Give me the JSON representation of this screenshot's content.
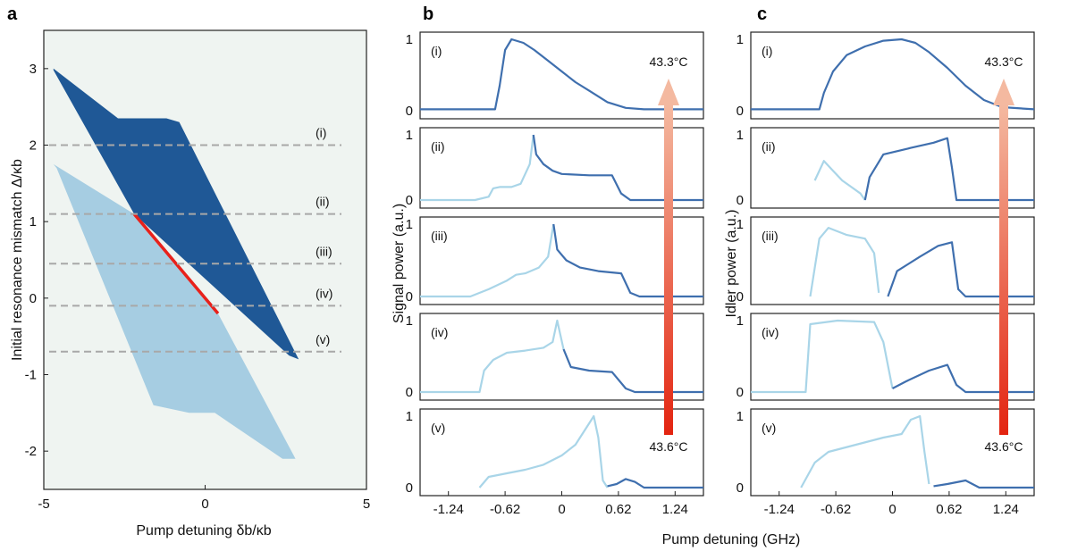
{
  "panels": {
    "a": "a",
    "b": "b",
    "c": "c"
  },
  "chart_data": [
    {
      "id": "a",
      "type": "area",
      "xlabel": "Pump detuning δb/κb",
      "ylabel": "Initial resonance mismatch Δ/κb",
      "xlim": [
        -5,
        5
      ],
      "ylim": [
        -2.5,
        3.5
      ],
      "xticks": [
        "-5",
        "0",
        "5"
      ],
      "yticks": [
        "-2",
        "-1",
        "0",
        "1",
        "2",
        "3"
      ],
      "colors": {
        "background": "#eff4f1",
        "upper": "#1f5896",
        "lower": "#a6cde2",
        "overlap": "#e8211b",
        "guides": "#a8a8a8"
      },
      "series": [
        {
          "polygon": [
            [
              -4.7,
              3.0
            ],
            [
              -2.7,
              2.35
            ],
            [
              -1.2,
              2.35
            ],
            [
              -0.8,
              2.3
            ],
            [
              2.9,
              -0.8
            ],
            [
              2.6,
              -0.75
            ],
            [
              -2.2,
              1.1
            ],
            [
              -4.7,
              2.98
            ]
          ]
        },
        {
          "polygon": [
            [
              -4.7,
              1.75
            ],
            [
              -2.2,
              1.1
            ],
            [
              0.4,
              -0.2
            ],
            [
              2.8,
              -2.1
            ],
            [
              2.4,
              -2.1
            ],
            [
              0.3,
              -1.5
            ],
            [
              -0.5,
              -1.5
            ],
            [
              -1.6,
              -1.4
            ],
            [
              -4.6,
              1.7
            ]
          ]
        },
        {
          "line": [
            [
              -2.2,
              1.1
            ],
            [
              0.4,
              -0.2
            ]
          ]
        }
      ],
      "guides": [
        {
          "y": 2.0,
          "label": "(i)"
        },
        {
          "y": 1.1,
          "label": "(ii)"
        },
        {
          "y": 0.45,
          "label": "(iii)"
        },
        {
          "y": -0.1,
          "label": "(iv)"
        },
        {
          "y": -0.7,
          "label": "(v)"
        }
      ]
    },
    {
      "id": "b",
      "type": "line",
      "ylabel": "Signal power (a.u.)",
      "xlabel": "Pump detuning (GHz)",
      "xlim": [
        -1.55,
        1.55
      ],
      "xticks": [
        "-1.24",
        "-0.62",
        "0",
        "0.62",
        "1.24"
      ],
      "yticks": [
        "0",
        "1"
      ],
      "colors": {
        "dark": "#3f6fae",
        "light": "#a9d5e8"
      },
      "arrow": {
        "top": "43.3°C",
        "bottom": "43.6°C"
      },
      "subplots": [
        {
          "label": "(i)",
          "light": [],
          "dark": [
            [
              -1.55,
              0.02
            ],
            [
              -0.73,
              0.02
            ],
            [
              -0.68,
              0.35
            ],
            [
              -0.62,
              0.85
            ],
            [
              -0.55,
              1.0
            ],
            [
              -0.42,
              0.95
            ],
            [
              -0.3,
              0.85
            ],
            [
              -0.15,
              0.7
            ],
            [
              0.0,
              0.55
            ],
            [
              0.15,
              0.4
            ],
            [
              0.3,
              0.28
            ],
            [
              0.5,
              0.12
            ],
            [
              0.7,
              0.04
            ],
            [
              0.9,
              0.02
            ],
            [
              1.55,
              0.02
            ]
          ]
        },
        {
          "label": "(ii)",
          "light": [
            [
              -1.55,
              0.0
            ],
            [
              -0.95,
              0.0
            ],
            [
              -0.8,
              0.05
            ],
            [
              -0.75,
              0.18
            ],
            [
              -0.68,
              0.2
            ],
            [
              -0.55,
              0.2
            ],
            [
              -0.45,
              0.25
            ],
            [
              -0.35,
              0.55
            ],
            [
              -0.31,
              1.0
            ]
          ],
          "dark": [
            [
              -0.31,
              1.0
            ],
            [
              -0.28,
              0.7
            ],
            [
              -0.2,
              0.55
            ],
            [
              -0.1,
              0.45
            ],
            [
              0.0,
              0.4
            ],
            [
              0.3,
              0.38
            ],
            [
              0.55,
              0.38
            ],
            [
              0.65,
              0.1
            ],
            [
              0.75,
              0.0
            ],
            [
              1.55,
              0.0
            ]
          ]
        },
        {
          "label": "(iii)",
          "light": [
            [
              -1.55,
              0.0
            ],
            [
              -1.0,
              0.0
            ],
            [
              -0.8,
              0.1
            ],
            [
              -0.6,
              0.22
            ],
            [
              -0.5,
              0.3
            ],
            [
              -0.4,
              0.32
            ],
            [
              -0.25,
              0.4
            ],
            [
              -0.15,
              0.55
            ],
            [
              -0.09,
              1.0
            ]
          ],
          "dark": [
            [
              -0.09,
              1.0
            ],
            [
              -0.05,
              0.65
            ],
            [
              0.05,
              0.5
            ],
            [
              0.2,
              0.4
            ],
            [
              0.4,
              0.35
            ],
            [
              0.65,
              0.32
            ],
            [
              0.75,
              0.05
            ],
            [
              0.85,
              0.0
            ],
            [
              1.55,
              0.0
            ]
          ]
        },
        {
          "label": "(iv)",
          "light": [
            [
              -1.55,
              0.0
            ],
            [
              -0.9,
              0.0
            ],
            [
              -0.85,
              0.3
            ],
            [
              -0.75,
              0.45
            ],
            [
              -0.6,
              0.55
            ],
            [
              -0.4,
              0.58
            ],
            [
              -0.2,
              0.62
            ],
            [
              -0.1,
              0.7
            ],
            [
              -0.05,
              1.0
            ],
            [
              0.02,
              0.6
            ]
          ],
          "dark": [
            [
              0.02,
              0.6
            ],
            [
              0.1,
              0.35
            ],
            [
              0.3,
              0.3
            ],
            [
              0.55,
              0.28
            ],
            [
              0.7,
              0.05
            ],
            [
              0.8,
              0.0
            ],
            [
              1.55,
              0.0
            ]
          ]
        },
        {
          "label": "(v)",
          "light": [
            [
              -0.9,
              0.0
            ],
            [
              -0.8,
              0.15
            ],
            [
              -0.6,
              0.2
            ],
            [
              -0.4,
              0.25
            ],
            [
              -0.2,
              0.32
            ],
            [
              0.0,
              0.45
            ],
            [
              0.15,
              0.6
            ],
            [
              0.3,
              0.9
            ],
            [
              0.35,
              1.0
            ],
            [
              0.4,
              0.7
            ],
            [
              0.45,
              0.1
            ],
            [
              0.5,
              0.0
            ]
          ],
          "dark": [
            [
              0.5,
              0.02
            ],
            [
              0.6,
              0.05
            ],
            [
              0.7,
              0.12
            ],
            [
              0.8,
              0.08
            ],
            [
              0.9,
              0.0
            ],
            [
              1.55,
              0.0
            ]
          ]
        }
      ]
    },
    {
      "id": "c",
      "type": "line",
      "ylabel": "Idler power (a.u.)",
      "xlim": [
        -1.55,
        1.55
      ],
      "xticks": [
        "-1.24",
        "-0.62",
        "0",
        "0.62",
        "1.24"
      ],
      "yticks": [
        "0",
        "1"
      ],
      "colors": {
        "dark": "#3f6fae",
        "light": "#a9d5e8"
      },
      "arrow": {
        "top": "43.3°C",
        "bottom": "43.6°C"
      },
      "subplots": [
        {
          "label": "(i)",
          "light": [],
          "dark": [
            [
              -1.55,
              0.02
            ],
            [
              -0.8,
              0.02
            ],
            [
              -0.75,
              0.25
            ],
            [
              -0.65,
              0.55
            ],
            [
              -0.5,
              0.78
            ],
            [
              -0.3,
              0.9
            ],
            [
              -0.1,
              0.98
            ],
            [
              0.1,
              1.0
            ],
            [
              0.25,
              0.95
            ],
            [
              0.4,
              0.82
            ],
            [
              0.6,
              0.6
            ],
            [
              0.8,
              0.35
            ],
            [
              1.0,
              0.15
            ],
            [
              1.2,
              0.05
            ],
            [
              1.55,
              0.02
            ]
          ]
        },
        {
          "label": "(ii)",
          "light": [
            [
              -0.85,
              0.3
            ],
            [
              -0.75,
              0.6
            ],
            [
              -0.65,
              0.45
            ],
            [
              -0.55,
              0.3
            ],
            [
              -0.45,
              0.2
            ],
            [
              -0.35,
              0.1
            ],
            [
              -0.3,
              0.0
            ]
          ],
          "dark": [
            [
              -0.3,
              0.0
            ],
            [
              -0.25,
              0.35
            ],
            [
              -0.1,
              0.7
            ],
            [
              0.2,
              0.8
            ],
            [
              0.45,
              0.88
            ],
            [
              0.6,
              0.95
            ],
            [
              0.65,
              0.5
            ],
            [
              0.7,
              0.0
            ],
            [
              1.55,
              0.0
            ]
          ]
        },
        {
          "label": "(iii)",
          "light": [
            [
              -0.9,
              0.0
            ],
            [
              -0.8,
              0.8
            ],
            [
              -0.7,
              0.95
            ],
            [
              -0.5,
              0.85
            ],
            [
              -0.3,
              0.8
            ],
            [
              -0.2,
              0.6
            ],
            [
              -0.15,
              0.05
            ]
          ],
          "dark": [
            [
              -0.05,
              0.0
            ],
            [
              0.05,
              0.35
            ],
            [
              0.3,
              0.55
            ],
            [
              0.5,
              0.7
            ],
            [
              0.65,
              0.75
            ],
            [
              0.72,
              0.1
            ],
            [
              0.8,
              0.0
            ],
            [
              1.55,
              0.0
            ]
          ]
        },
        {
          "label": "(iv)",
          "light": [
            [
              -1.55,
              0.0
            ],
            [
              -0.95,
              0.0
            ],
            [
              -0.9,
              0.95
            ],
            [
              -0.6,
              1.0
            ],
            [
              -0.2,
              0.98
            ],
            [
              -0.1,
              0.7
            ],
            [
              0.0,
              0.05
            ]
          ],
          "dark": [
            [
              0.0,
              0.05
            ],
            [
              0.15,
              0.15
            ],
            [
              0.4,
              0.3
            ],
            [
              0.6,
              0.38
            ],
            [
              0.7,
              0.1
            ],
            [
              0.8,
              0.0
            ],
            [
              1.55,
              0.0
            ]
          ]
        },
        {
          "label": "(v)",
          "light": [
            [
              -1.0,
              0.0
            ],
            [
              -0.85,
              0.35
            ],
            [
              -0.7,
              0.5
            ],
            [
              -0.4,
              0.6
            ],
            [
              -0.1,
              0.7
            ],
            [
              0.1,
              0.75
            ],
            [
              0.2,
              0.95
            ],
            [
              0.3,
              1.0
            ],
            [
              0.35,
              0.5
            ],
            [
              0.4,
              0.05
            ]
          ],
          "dark": [
            [
              0.45,
              0.02
            ],
            [
              0.6,
              0.05
            ],
            [
              0.8,
              0.1
            ],
            [
              0.95,
              0.0
            ],
            [
              1.55,
              0.0
            ]
          ]
        }
      ]
    }
  ]
}
